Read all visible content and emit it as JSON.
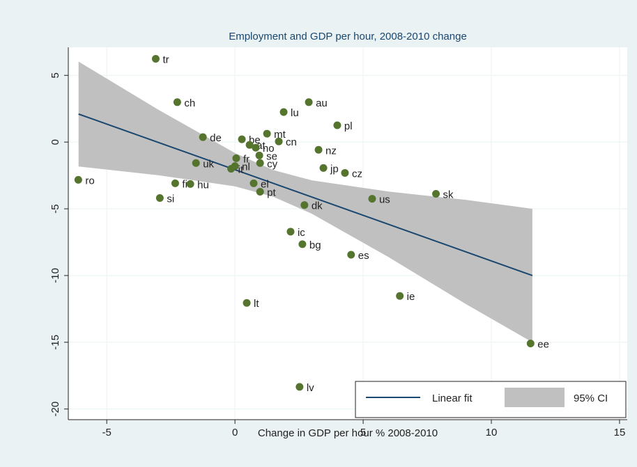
{
  "chart_data": {
    "type": "scatter",
    "title": "Employment and GDP per hour, 2008-2010 change",
    "x_label": "Change in GDP per hour % 2008-2010",
    "xlim": [
      -6.5,
      15.3
    ],
    "ylim": [
      -20.8,
      7.1
    ],
    "xticks": [
      -5,
      0,
      5,
      10,
      15
    ],
    "yticks": [
      -20,
      -15,
      -10,
      -5,
      0,
      5
    ],
    "grid": true,
    "legend": "bottom-right",
    "points": {
      "color": "#55752f",
      "labels": [
        "tr",
        "ch",
        "de",
        "be",
        "at",
        "no",
        "cn",
        "mt",
        "lu",
        "au",
        "pl",
        "nz",
        "se",
        "fr",
        "cy",
        "it",
        "nl",
        "uk",
        "jp",
        "cz",
        "ro",
        "fi",
        "hu",
        "el",
        "pt",
        "si",
        "dk",
        "us",
        "sk",
        "ic",
        "bg",
        "es",
        "ie",
        "lt",
        "ee",
        "lv"
      ],
      "x": [
        -3.09,
        -2.25,
        -1.25,
        0.27,
        0.57,
        0.81,
        1.71,
        1.25,
        1.9,
        2.88,
        3.99,
        3.26,
        0.95,
        0.05,
        0.98,
        -0.15,
        0.0,
        -1.52,
        3.45,
        4.29,
        -6.11,
        -2.33,
        -1.74,
        0.73,
        0.98,
        -2.93,
        2.71,
        5.35,
        7.84,
        2.17,
        2.63,
        4.53,
        6.43,
        0.46,
        11.53,
        2.52
      ],
      "y": [
        6.24,
        2.99,
        0.37,
        0.21,
        -0.21,
        -0.42,
        0.05,
        0.63,
        2.25,
        2.99,
        1.26,
        -0.58,
        -1.0,
        -1.21,
        -1.57,
        -2.0,
        -1.8,
        -1.57,
        -1.94,
        -2.31,
        -2.83,
        -3.09,
        -3.14,
        -3.09,
        -3.72,
        -4.19,
        -4.72,
        -4.25,
        -3.88,
        -6.71,
        -7.65,
        -8.44,
        -11.53,
        -12.05,
        -15.09,
        -18.34
      ]
    },
    "fit": {
      "name": "Linear fit",
      "color": "#1a476f",
      "x": [
        -6.1,
        11.6
      ],
      "y": [
        2.1,
        -10.0
      ]
    },
    "ci": {
      "name": "95% CI",
      "color": "#c0c0c0",
      "x": [
        -6.1,
        -3,
        0,
        1.5,
        3,
        6,
        9,
        11.6
      ],
      "lower": [
        -1.83,
        -2.48,
        -3.32,
        -4.1,
        -5.37,
        -8.63,
        -12.13,
        -15.0
      ],
      "upper": [
        6.03,
        2.44,
        -0.82,
        -2.1,
        -2.87,
        -3.71,
        -4.33,
        -5.0
      ]
    }
  }
}
